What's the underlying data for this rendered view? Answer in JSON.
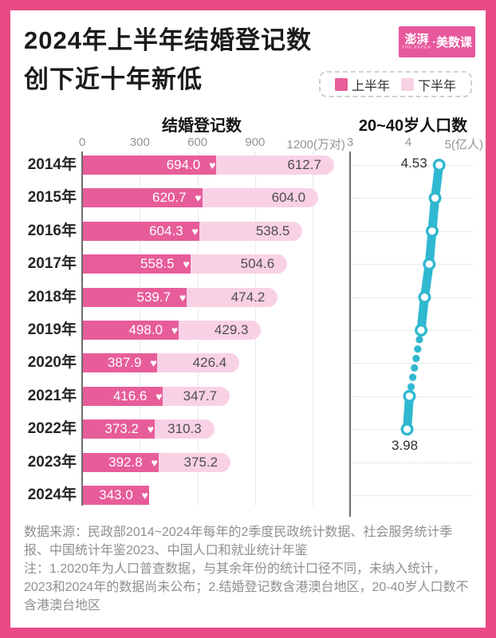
{
  "header": {
    "title_line1": "2024年上半年结婚登记数",
    "title_line2": "创下近十年新低",
    "logo_part1": "澎湃",
    "logo_sub": "THE PAPER",
    "logo_part2": "·美数课"
  },
  "legend": {
    "items": [
      {
        "label": "上半年",
        "color": "#e7589c"
      },
      {
        "label": "下半年",
        "color": "#f9d0e4"
      }
    ]
  },
  "colors": {
    "frame": "#e84a85",
    "first_half_bar": "#e75d9a",
    "second_half_bar": "#f9d1e5",
    "population_line": "#30b8d1",
    "heart": "#ffffff"
  },
  "chart_data": [
    {
      "type": "bar",
      "title": "结婚登记数",
      "orientation": "horizontal-stacked",
      "unit": "万对",
      "xlim": [
        0,
        1200
      ],
      "x_ticks": [
        0,
        300,
        600,
        900,
        1200
      ],
      "x_tick_labels": [
        "0",
        "300",
        "600",
        "900",
        "1200(万对)"
      ],
      "categories": [
        "2014年",
        "2015年",
        "2016年",
        "2017年",
        "2018年",
        "2019年",
        "2020年",
        "2021年",
        "2022年",
        "2023年",
        "2024年"
      ],
      "series": [
        {
          "name": "上半年",
          "values": [
            694.0,
            620.7,
            604.3,
            558.5,
            539.7,
            498.0,
            387.9,
            416.6,
            373.2,
            392.8,
            343.0
          ],
          "labels": [
            "694.0",
            "620.7",
            "604.3",
            "558.5",
            "539.7",
            "498.0",
            "387.9",
            "416.6",
            "373.2",
            "392.8",
            "343.0"
          ]
        },
        {
          "name": "下半年",
          "values": [
            612.7,
            604.0,
            538.5,
            504.6,
            474.2,
            429.3,
            426.4,
            347.7,
            310.3,
            375.2,
            null
          ],
          "labels": [
            "612.7",
            "604.0",
            "538.5",
            "504.6",
            "474.2",
            "429.3",
            "426.4",
            "347.7",
            "310.3",
            "375.2",
            null
          ]
        }
      ]
    },
    {
      "type": "line",
      "title": "20~40岁人口数",
      "unit": "亿人",
      "xlim": [
        3,
        5
      ],
      "x_ticks": [
        3,
        4,
        5
      ],
      "x_tick_labels": [
        "3",
        "4",
        "5(亿人)"
      ],
      "categories": [
        "2014年",
        "2015年",
        "2016年",
        "2017年",
        "2018年",
        "2019年",
        "2020年",
        "2021年",
        "2022年",
        "2023年",
        "2024年"
      ],
      "values": [
        4.53,
        4.46,
        4.41,
        4.36,
        4.28,
        4.22,
        null,
        4.02,
        3.98,
        null,
        null
      ],
      "dotted_gap_between": [
        "2019年",
        "2021年"
      ],
      "point_labels": [
        {
          "year_index": 0,
          "text": "4.53",
          "placement": "left"
        },
        {
          "year_index": 8,
          "text": "3.98",
          "placement": "below"
        }
      ]
    }
  ],
  "footer": {
    "source": "数据来源：民政部2014~2024年每年的2季度民政统计数据、社会服务统计季报、中国统计年鉴2023、中国人口和就业统计年鉴",
    "note": "注：1.2020年为人口普查数据，与其余年份的统计口径不同，未纳入统计，2023和2024年的数据尚未公布；2.结婚登记数含港澳台地区，20-40岁人口数不含港澳台地区"
  }
}
